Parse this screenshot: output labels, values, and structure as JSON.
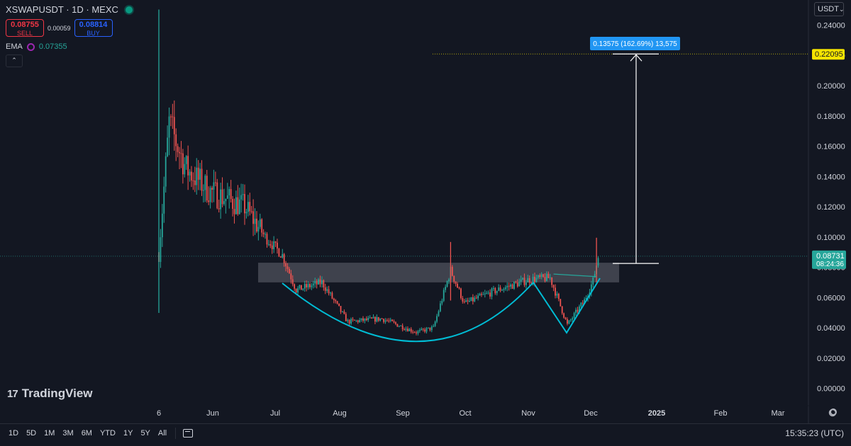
{
  "header": {
    "symbol": "XSWAPUSDT · 1D · MEXC",
    "sell_price": "0.08755",
    "sell_label": "SELL",
    "spread": "0.00059",
    "buy_price": "0.08814",
    "buy_label": "BUY",
    "ema_label": "EMA",
    "ema_value": "0.07355"
  },
  "currency": "USDT",
  "logo_text": "TradingView",
  "time_ranges": [
    "1D",
    "5D",
    "1M",
    "3M",
    "6M",
    "YTD",
    "1Y",
    "5Y",
    "All"
  ],
  "clock": "15:35:23 (UTC)",
  "colors": {
    "background": "#131722",
    "up": "#26a69a",
    "down": "#ef5350",
    "pattern": "#00bcd4",
    "ema": "#26a69a",
    "measure_label": "#2196f3",
    "target_label": "#f5e400"
  },
  "chart_data": {
    "type": "candlestick",
    "y_axis": {
      "min": 0,
      "max": 0.24,
      "ticks": [
        "0.24000",
        "0.22000",
        "0.20000",
        "0.18000",
        "0.16000",
        "0.14000",
        "0.12000",
        "0.10000",
        "0.08000",
        "0.06000",
        "0.04000",
        "0.02000",
        "0.00000"
      ]
    },
    "x_ticks": [
      "6",
      "Jun",
      "Jul",
      "Aug",
      "Sep",
      "Oct",
      "Nov",
      "Dec",
      "2025",
      "Feb",
      "Mar"
    ],
    "current_price": {
      "value": 0.08731,
      "label": "0.08731",
      "countdown": "08:24:36"
    },
    "target_price": {
      "value": 0.22095,
      "label": "0.22095"
    },
    "measure_label": "0.13575 (162.69%) 13,575",
    "resistance_zone": [
      0.07,
      0.083
    ],
    "series_shape": [
      {
        "day": 0,
        "price": 0.09
      },
      {
        "day": 6,
        "price": 0.175
      },
      {
        "day": 16,
        "price": 0.145
      },
      {
        "day": 30,
        "price": 0.13
      },
      {
        "day": 50,
        "price": 0.12
      },
      {
        "day": 62,
        "price": 0.1
      },
      {
        "day": 72,
        "price": 0.088
      },
      {
        "day": 80,
        "price": 0.065
      },
      {
        "day": 95,
        "price": 0.07
      },
      {
        "day": 110,
        "price": 0.044
      },
      {
        "day": 130,
        "price": 0.046
      },
      {
        "day": 150,
        "price": 0.037
      },
      {
        "day": 160,
        "price": 0.04
      },
      {
        "day": 170,
        "price": 0.078
      },
      {
        "day": 178,
        "price": 0.056
      },
      {
        "day": 195,
        "price": 0.064
      },
      {
        "day": 216,
        "price": 0.072
      },
      {
        "day": 228,
        "price": 0.073
      },
      {
        "day": 238,
        "price": 0.042
      },
      {
        "day": 248,
        "price": 0.058
      },
      {
        "day": 253,
        "price": 0.071
      },
      {
        "day": 256,
        "price": 0.087
      }
    ],
    "spikes": [
      {
        "day": 0,
        "high": 0.2503,
        "low": 0.0498
      },
      {
        "day": 170,
        "high": 0.0967,
        "low": 0.058
      },
      {
        "day": 255,
        "high": 0.0995,
        "low": 0.07
      }
    ]
  }
}
